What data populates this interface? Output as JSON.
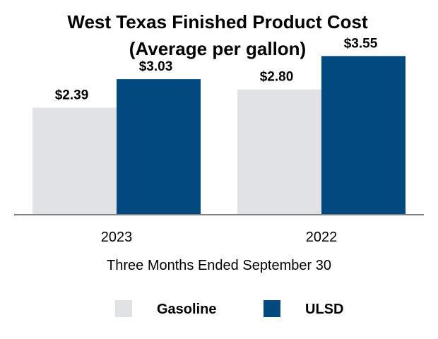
{
  "chart_data": {
    "type": "bar",
    "title": "West Texas Finished Product Cost",
    "subtitle": "(Average per gallon)",
    "categories": [
      "2023",
      "2022"
    ],
    "series": [
      {
        "name": "Gasoline",
        "values": [
          2.39,
          2.8
        ],
        "labels": [
          "$2.39",
          "$2.80"
        ],
        "color": "#e1e2e6"
      },
      {
        "name": "ULSD",
        "values": [
          3.03,
          3.55
        ],
        "labels": [
          "$3.03",
          "$3.55"
        ],
        "color": "#004a80"
      }
    ],
    "xlabel": "Three Months Ended September 30",
    "ylabel": "",
    "ylim": [
      0,
      4.0
    ],
    "grid": false,
    "legend": "bottom"
  }
}
